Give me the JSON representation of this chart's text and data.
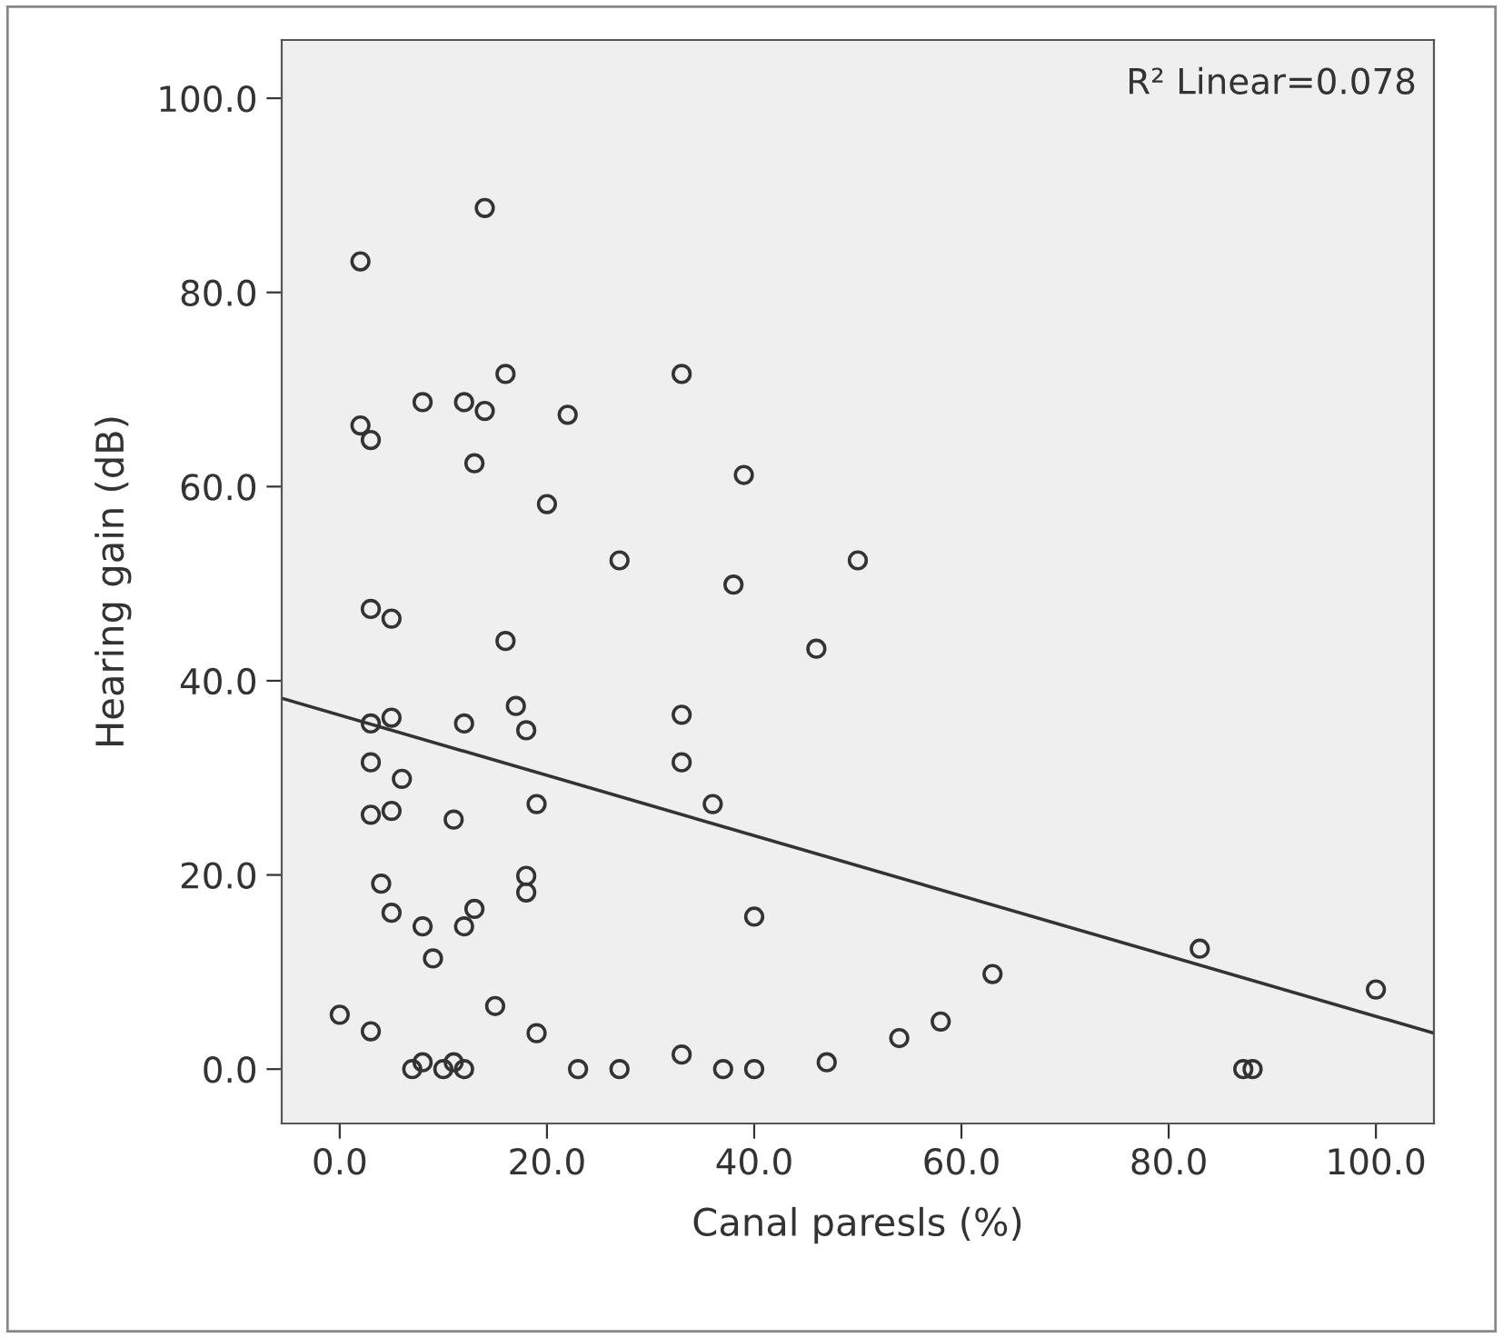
{
  "chart_data": {
    "type": "scatter",
    "xlabel": "Canal paresls (%)",
    "ylabel": "Hearing gain (dB)",
    "annotations": [
      "R² Linear=0.078"
    ],
    "xlim": [
      -5.6,
      105.6
    ],
    "ylim": [
      -5.6,
      106
    ],
    "xticks": [
      {
        "value": 0,
        "label": "0.0"
      },
      {
        "value": 20,
        "label": "20.0"
      },
      {
        "value": 40,
        "label": "40.0"
      },
      {
        "value": 60,
        "label": "60.0"
      },
      {
        "value": 80,
        "label": "80.0"
      },
      {
        "value": 100,
        "label": "100.0"
      }
    ],
    "yticks": [
      {
        "value": 0,
        "label": "0.0"
      },
      {
        "value": 20,
        "label": "20.0"
      },
      {
        "value": 40,
        "label": "40.0"
      },
      {
        "value": 60,
        "label": "60.0"
      },
      {
        "value": 80,
        "label": "80.0"
      },
      {
        "value": 100,
        "label": "100.0"
      }
    ],
    "grid": false,
    "marker": "circle",
    "series": [
      {
        "color": "#333333",
        "x": [
          0,
          2,
          2,
          3,
          3,
          5,
          16,
          3,
          5,
          12,
          17,
          18,
          3,
          6,
          3,
          5,
          11,
          19,
          4,
          18,
          18,
          5,
          8,
          12,
          13,
          9,
          3,
          15,
          19,
          7,
          8,
          10,
          11,
          12,
          23,
          27,
          14,
          16,
          8,
          12,
          14,
          22,
          13,
          20,
          27,
          33,
          39,
          50,
          38,
          46,
          33,
          33,
          36,
          40,
          63,
          58,
          54,
          47,
          33,
          37,
          40,
          83,
          100,
          87.2,
          88.1
        ],
        "values": [
          5.6,
          83.2,
          66.3,
          64.8,
          47.4,
          46.4,
          44.1,
          35.6,
          36.2,
          35.6,
          37.4,
          34.9,
          31.6,
          29.9,
          26.2,
          26.6,
          25.7,
          27.3,
          19.1,
          19.9,
          18.2,
          16.1,
          14.7,
          14.7,
          16.5,
          11.4,
          3.9,
          6.5,
          3.7,
          0,
          0.7,
          0,
          0.7,
          0,
          0,
          0,
          88.7,
          71.6,
          68.7,
          68.7,
          67.8,
          67.4,
          62.4,
          58.2,
          52.4,
          71.6,
          61.2,
          52.4,
          49.9,
          43.3,
          36.5,
          31.6,
          27.3,
          15.7,
          9.8,
          4.9,
          3.2,
          0.7,
          1.5,
          0,
          0,
          12.4,
          8.2,
          0,
          0
        ]
      },
      {
        "type": "line",
        "color": "#333333",
        "x": [
          -5.6,
          105.6
        ],
        "values": [
          38.2,
          3.7
        ],
        "marker": "none"
      }
    ]
  }
}
